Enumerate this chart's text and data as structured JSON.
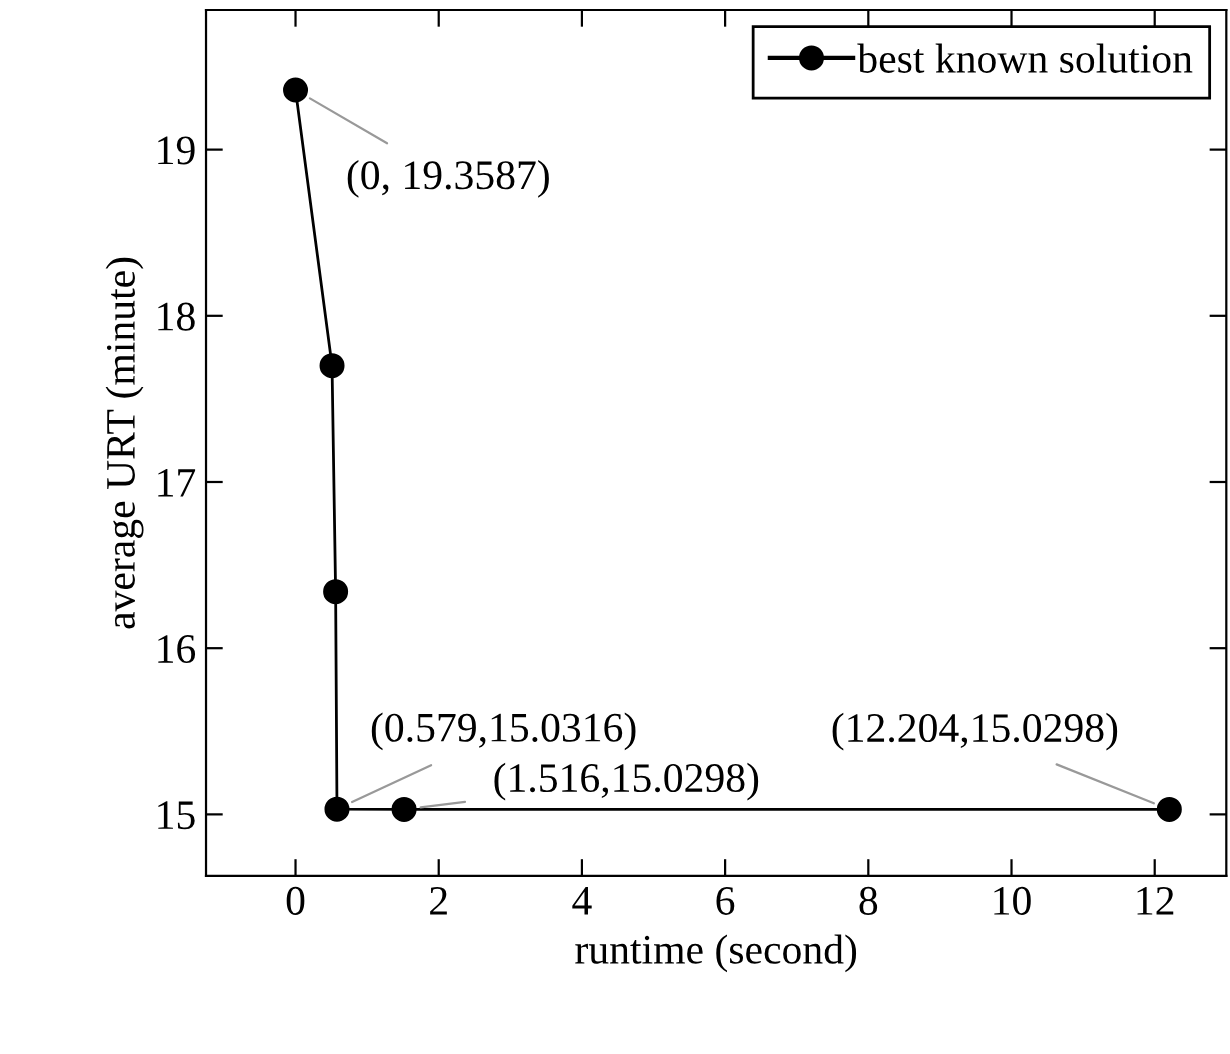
{
  "chart_data": {
    "type": "line",
    "xlabel": "runtime (second)",
    "ylabel": "average URT (minute)",
    "series": [
      {
        "name": "best known solution",
        "color": "#000000",
        "x": [
          0,
          0.51,
          0.56,
          0.579,
          1.516,
          12.204
        ],
        "values": [
          19.3587,
          17.7,
          16.34,
          15.0316,
          15.0298,
          15.0298
        ]
      }
    ],
    "xlim": [
      -1.25,
      13
    ],
    "ylim": [
      14.63,
      19.84
    ],
    "xticks": [
      0,
      2,
      4,
      6,
      8,
      10,
      12
    ],
    "yticks": [
      15,
      16,
      17,
      18,
      19
    ],
    "marker": "circle",
    "line_style": "solid",
    "legend": "top right",
    "grid": false,
    "annotations": [
      {
        "text": "(0, 19.3587)",
        "x": 0,
        "y": 19.3587
      },
      {
        "text": "(0.579,15.0316)",
        "x": 0.579,
        "y": 15.0316
      },
      {
        "text": "(1.516,15.0298)",
        "x": 1.516,
        "y": 15.0298
      },
      {
        "text": "(12.204,15.0298)",
        "x": 12.204,
        "y": 15.0298
      }
    ]
  }
}
